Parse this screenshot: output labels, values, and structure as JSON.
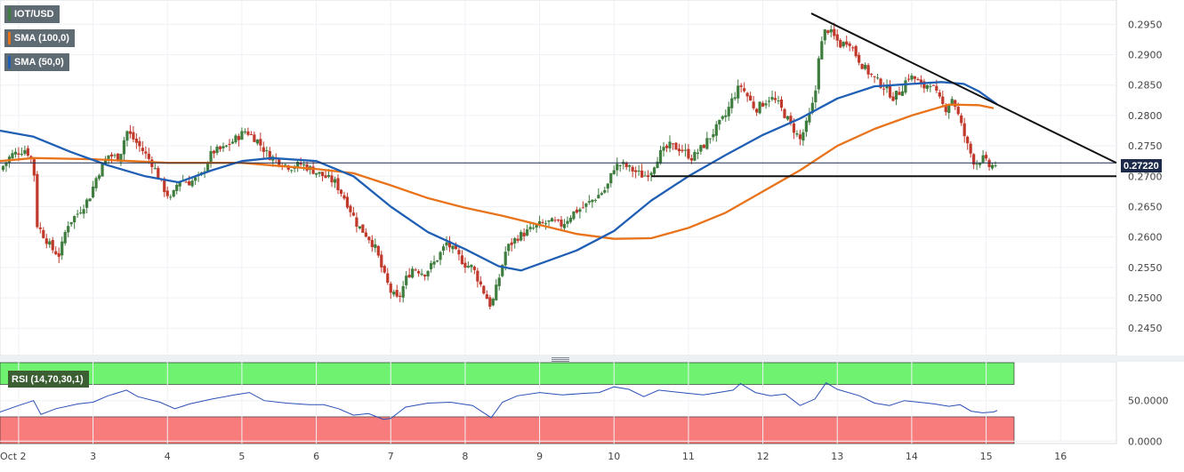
{
  "legend": {
    "pair": "IOT/USD",
    "sma100": "SMA (100,0)",
    "sma50": "SMA (50,0)",
    "rsi": "RSI (14,70,30,1)"
  },
  "colors": {
    "candle_up": "#3f7d3f",
    "candle_down": "#c0392b",
    "sma100": "#e8731a",
    "sma50": "#1f5fb4",
    "rsi_line": "#2a4fb5",
    "overbought_band": "#6ff26f",
    "oversold_band": "#f97c7c",
    "trendline": "#111111",
    "current_price_line": "#1d2a4a"
  },
  "price_badge": "0.27220",
  "chart_data": [
    {
      "type": "line",
      "subtype": "candlestick_with_overlays",
      "pair": "IOT/USD",
      "x_axis": {
        "type": "date",
        "ticks": [
          "Oct 2",
          "3",
          "4",
          "5",
          "6",
          "7",
          "8",
          "9",
          "10",
          "11",
          "12",
          "13",
          "14",
          "15",
          "16"
        ],
        "range": [
          1.75,
          16.75
        ]
      },
      "y_axis": {
        "ticks": [
          "0.2950",
          "0.2900",
          "0.2850",
          "0.2800",
          "0.2750",
          "0.2700",
          "0.2650",
          "0.2600",
          "0.2550",
          "0.2500",
          "0.2450"
        ],
        "range": [
          0.2405,
          0.299
        ]
      },
      "grid": true,
      "current_price": 0.2722,
      "close_path": [
        [
          1.75,
          0.271
        ],
        [
          1.9,
          0.2735
        ],
        [
          2.1,
          0.2745
        ],
        [
          2.2,
          0.272
        ],
        [
          2.25,
          0.262
        ],
        [
          2.35,
          0.26
        ],
        [
          2.45,
          0.258
        ],
        [
          2.55,
          0.257
        ],
        [
          2.65,
          0.262
        ],
        [
          2.8,
          0.264
        ],
        [
          2.95,
          0.2665
        ],
        [
          3.05,
          0.27
        ],
        [
          3.2,
          0.2735
        ],
        [
          3.35,
          0.273
        ],
        [
          3.45,
          0.2775
        ],
        [
          3.55,
          0.276
        ],
        [
          3.65,
          0.2745
        ],
        [
          3.8,
          0.272
        ],
        [
          3.95,
          0.268
        ],
        [
          4.05,
          0.266
        ],
        [
          4.15,
          0.2695
        ],
        [
          4.3,
          0.269
        ],
        [
          4.45,
          0.27
        ],
        [
          4.6,
          0.274
        ],
        [
          4.75,
          0.2745
        ],
        [
          4.9,
          0.276
        ],
        [
          5.05,
          0.2775
        ],
        [
          5.2,
          0.276
        ],
        [
          5.35,
          0.2735
        ],
        [
          5.5,
          0.2725
        ],
        [
          5.65,
          0.2715
        ],
        [
          5.8,
          0.272
        ],
        [
          5.95,
          0.271
        ],
        [
          6.1,
          0.27
        ],
        [
          6.25,
          0.269
        ],
        [
          6.4,
          0.266
        ],
        [
          6.55,
          0.262
        ],
        [
          6.7,
          0.26
        ],
        [
          6.8,
          0.258
        ],
        [
          6.9,
          0.254
        ],
        [
          7.0,
          0.251
        ],
        [
          7.1,
          0.2495
        ],
        [
          7.2,
          0.253
        ],
        [
          7.3,
          0.255
        ],
        [
          7.45,
          0.254
        ],
        [
          7.6,
          0.256
        ],
        [
          7.75,
          0.259
        ],
        [
          7.9,
          0.257
        ],
        [
          8.0,
          0.2555
        ],
        [
          8.1,
          0.255
        ],
        [
          8.25,
          0.251
        ],
        [
          8.35,
          0.2485
        ],
        [
          8.45,
          0.253
        ],
        [
          8.55,
          0.258
        ],
        [
          8.7,
          0.26
        ],
        [
          8.85,
          0.261
        ],
        [
          9.0,
          0.262
        ],
        [
          9.15,
          0.2625
        ],
        [
          9.3,
          0.262
        ],
        [
          9.45,
          0.264
        ],
        [
          9.6,
          0.265
        ],
        [
          9.75,
          0.2665
        ],
        [
          9.9,
          0.268
        ],
        [
          10.0,
          0.2715
        ],
        [
          10.1,
          0.272
        ],
        [
          10.25,
          0.271
        ],
        [
          10.4,
          0.27
        ],
        [
          10.5,
          0.271
        ],
        [
          10.6,
          0.2735
        ],
        [
          10.75,
          0.275
        ],
        [
          10.9,
          0.2745
        ],
        [
          11.05,
          0.273
        ],
        [
          11.2,
          0.275
        ],
        [
          11.35,
          0.2775
        ],
        [
          11.5,
          0.28
        ],
        [
          11.6,
          0.283
        ],
        [
          11.7,
          0.285
        ],
        [
          11.8,
          0.283
        ],
        [
          11.9,
          0.281
        ],
        [
          12.0,
          0.282
        ],
        [
          12.1,
          0.283
        ],
        [
          12.2,
          0.282
        ],
        [
          12.3,
          0.28
        ],
        [
          12.4,
          0.278
        ],
        [
          12.5,
          0.276
        ],
        [
          12.6,
          0.279
        ],
        [
          12.7,
          0.283
        ],
        [
          12.75,
          0.29
        ],
        [
          12.85,
          0.2945
        ],
        [
          12.95,
          0.293
        ],
        [
          13.05,
          0.2915
        ],
        [
          13.15,
          0.2925
        ],
        [
          13.25,
          0.29
        ],
        [
          13.35,
          0.288
        ],
        [
          13.5,
          0.286
        ],
        [
          13.65,
          0.2845
        ],
        [
          13.75,
          0.283
        ],
        [
          13.85,
          0.284
        ],
        [
          13.95,
          0.2865
        ],
        [
          14.05,
          0.286
        ],
        [
          14.15,
          0.2845
        ],
        [
          14.25,
          0.2855
        ],
        [
          14.35,
          0.283
        ],
        [
          14.45,
          0.281
        ],
        [
          14.55,
          0.283
        ],
        [
          14.65,
          0.279
        ],
        [
          14.75,
          0.275
        ],
        [
          14.85,
          0.272
        ],
        [
          14.95,
          0.273
        ],
        [
          15.05,
          0.2715
        ],
        [
          15.15,
          0.2722
        ]
      ],
      "series": [
        {
          "name": "SMA (100,0)",
          "color": "#e8731a",
          "points": [
            [
              1.75,
              0.2725
            ],
            [
              2.2,
              0.273
            ],
            [
              3.0,
              0.2728
            ],
            [
              3.5,
              0.2725
            ],
            [
              4.0,
              0.2722
            ],
            [
              4.5,
              0.2722
            ],
            [
              5.0,
              0.2722
            ],
            [
              5.5,
              0.2717
            ],
            [
              6.0,
              0.2712
            ],
            [
              6.5,
              0.2705
            ],
            [
              7.0,
              0.2685
            ],
            [
              7.5,
              0.2664
            ],
            [
              8.0,
              0.2648
            ],
            [
              8.5,
              0.2635
            ],
            [
              9.0,
              0.262
            ],
            [
              9.5,
              0.2605
            ],
            [
              10.0,
              0.2597
            ],
            [
              10.5,
              0.2598
            ],
            [
              11.0,
              0.2615
            ],
            [
              11.5,
              0.264
            ],
            [
              12.0,
              0.2675
            ],
            [
              12.5,
              0.271
            ],
            [
              13.0,
              0.275
            ],
            [
              13.5,
              0.2778
            ],
            [
              14.0,
              0.28
            ],
            [
              14.5,
              0.2818
            ],
            [
              14.9,
              0.2817
            ],
            [
              15.1,
              0.2812
            ]
          ]
        },
        {
          "name": "SMA (50,0)",
          "color": "#1f5fb4",
          "points": [
            [
              1.75,
              0.2775
            ],
            [
              2.2,
              0.2765
            ],
            [
              2.7,
              0.274
            ],
            [
              3.2,
              0.2718
            ],
            [
              3.7,
              0.27
            ],
            [
              4.15,
              0.269
            ],
            [
              4.6,
              0.271
            ],
            [
              5.0,
              0.2725
            ],
            [
              5.4,
              0.273
            ],
            [
              6.0,
              0.2725
            ],
            [
              6.5,
              0.27
            ],
            [
              7.0,
              0.265
            ],
            [
              7.5,
              0.2608
            ],
            [
              8.0,
              0.258
            ],
            [
              8.45,
              0.2552
            ],
            [
              8.75,
              0.2545
            ],
            [
              9.0,
              0.2556
            ],
            [
              9.5,
              0.2578
            ],
            [
              10.0,
              0.261
            ],
            [
              10.5,
              0.266
            ],
            [
              11.0,
              0.27
            ],
            [
              11.5,
              0.2735
            ],
            [
              12.0,
              0.2768
            ],
            [
              12.5,
              0.2795
            ],
            [
              13.0,
              0.2828
            ],
            [
              13.5,
              0.2848
            ],
            [
              14.0,
              0.2852
            ],
            [
              14.4,
              0.2855
            ],
            [
              14.7,
              0.2852
            ],
            [
              14.9,
              0.284
            ],
            [
              15.15,
              0.2818
            ]
          ]
        }
      ],
      "annotations": [
        {
          "kind": "trendline",
          "from": [
            12.65,
            0.2968
          ],
          "to": [
            16.75,
            0.2722
          ]
        },
        {
          "kind": "support",
          "from": [
            10.5,
            0.27
          ],
          "to": [
            16.75,
            0.27
          ]
        }
      ]
    },
    {
      "type": "line",
      "name": "RSI (14,70,30,1)",
      "x_axis": {
        "range": [
          1.75,
          16.75
        ]
      },
      "y_axis": {
        "ticks": [
          "50.0000",
          "0.0000"
        ],
        "range": [
          -3,
          98
        ]
      },
      "bands": {
        "overbought": 70,
        "oversold": 30
      },
      "series": [
        {
          "name": "RSI (14,70,30,1)",
          "points": [
            [
              1.75,
              36
            ],
            [
              2.0,
              44
            ],
            [
              2.2,
              50
            ],
            [
              2.3,
              33
            ],
            [
              2.5,
              40
            ],
            [
              2.8,
              46
            ],
            [
              3.0,
              48
            ],
            [
              3.2,
              56
            ],
            [
              3.45,
              63
            ],
            [
              3.6,
              55
            ],
            [
              3.9,
              48
            ],
            [
              4.1,
              40
            ],
            [
              4.3,
              46
            ],
            [
              4.6,
              52
            ],
            [
              4.9,
              57
            ],
            [
              5.1,
              60
            ],
            [
              5.3,
              50
            ],
            [
              5.6,
              47
            ],
            [
              5.9,
              45
            ],
            [
              6.1,
              45
            ],
            [
              6.3,
              40
            ],
            [
              6.5,
              32
            ],
            [
              6.7,
              34
            ],
            [
              6.9,
              27
            ],
            [
              7.0,
              28
            ],
            [
              7.2,
              42
            ],
            [
              7.5,
              47
            ],
            [
              7.8,
              48
            ],
            [
              8.1,
              44
            ],
            [
              8.35,
              29
            ],
            [
              8.5,
              48
            ],
            [
              8.7,
              56
            ],
            [
              9.0,
              60
            ],
            [
              9.3,
              57
            ],
            [
              9.6,
              59
            ],
            [
              9.8,
              60
            ],
            [
              10.0,
              67
            ],
            [
              10.2,
              64
            ],
            [
              10.4,
              55
            ],
            [
              10.6,
              63
            ],
            [
              10.9,
              60
            ],
            [
              11.2,
              57
            ],
            [
              11.4,
              60
            ],
            [
              11.6,
              63
            ],
            [
              11.7,
              71
            ],
            [
              11.9,
              60
            ],
            [
              12.1,
              56
            ],
            [
              12.3,
              58
            ],
            [
              12.5,
              44
            ],
            [
              12.7,
              52
            ],
            [
              12.85,
              72
            ],
            [
              13.0,
              64
            ],
            [
              13.3,
              56
            ],
            [
              13.5,
              47
            ],
            [
              13.7,
              44
            ],
            [
              13.9,
              50
            ],
            [
              14.1,
              48
            ],
            [
              14.3,
              46
            ],
            [
              14.5,
              43
            ],
            [
              14.65,
              45
            ],
            [
              14.8,
              37
            ],
            [
              14.95,
              35
            ],
            [
              15.1,
              36
            ],
            [
              15.15,
              38
            ]
          ]
        }
      ]
    }
  ]
}
